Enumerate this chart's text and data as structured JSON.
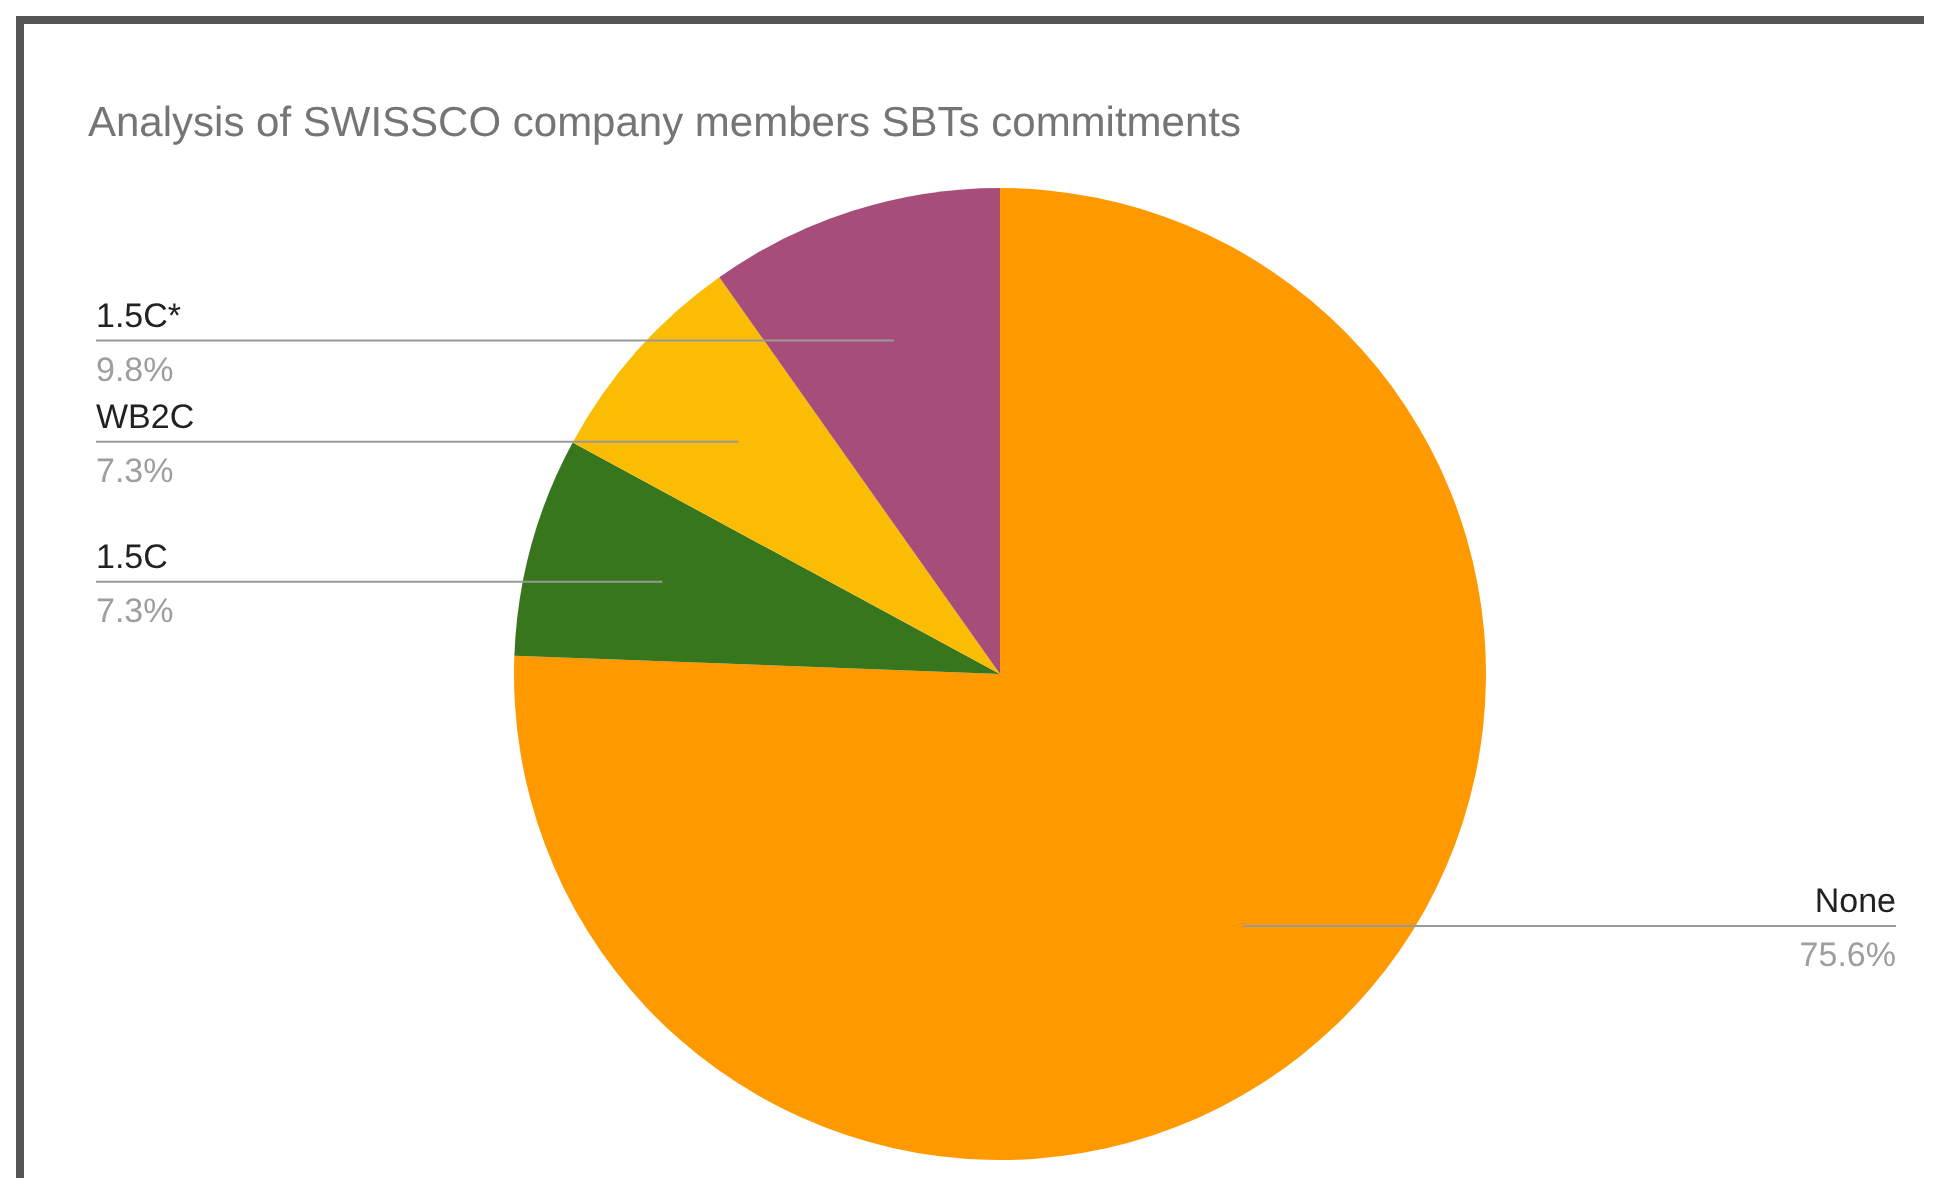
{
  "chart_data": {
    "type": "pie",
    "title": "Analysis of SWISSCO company members SBTs commitments",
    "categories": [
      "None",
      "1.5C",
      "WB2C",
      "1.5C*"
    ],
    "values": [
      75.6,
      7.3,
      7.3,
      9.8
    ],
    "colors": [
      "#ff9900",
      "#38761d",
      "#fbbc04",
      "#a64d79"
    ],
    "value_labels": [
      "75.6%",
      "7.3%",
      "7.3%",
      "9.8%"
    ]
  }
}
